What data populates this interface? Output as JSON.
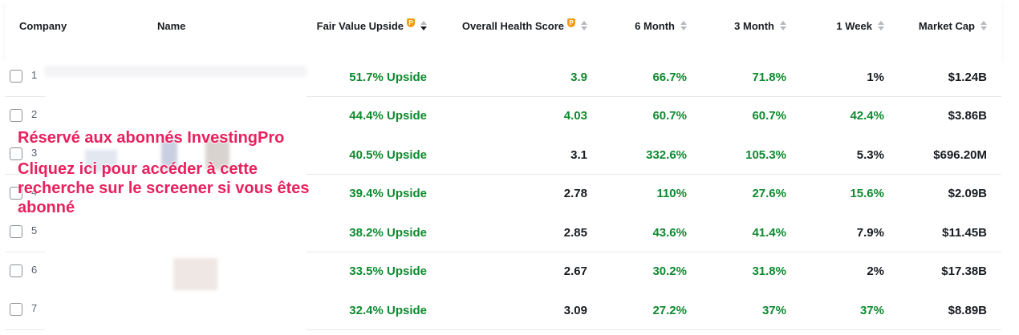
{
  "columns": {
    "company": "Company",
    "name": "Name",
    "fair_value_upside": "Fair Value Upside",
    "overall_health_score": "Overall Health Score",
    "six_month": "6 Month",
    "three_month": "3 Month",
    "one_week": "1 Week",
    "market_cap": "Market Cap"
  },
  "pro_badge": "P",
  "rows": [
    {
      "index": "1",
      "upside": "51.7% Upside",
      "health": "3.9",
      "health_color": "green",
      "m6": "66.7%",
      "m6_color": "green",
      "m3": "71.8%",
      "m3_color": "green",
      "w1": "1%",
      "w1_color": "dark",
      "mcap": "$1.24B"
    },
    {
      "index": "2",
      "upside": "44.4% Upside",
      "health": "4.03",
      "health_color": "green",
      "m6": "60.7%",
      "m6_color": "green",
      "m3": "60.7%",
      "m3_color": "green",
      "w1": "42.4%",
      "w1_color": "green",
      "mcap": "$3.86B"
    },
    {
      "index": "3",
      "upside": "40.5% Upside",
      "health": "3.1",
      "health_color": "dark",
      "m6": "332.6%",
      "m6_color": "green",
      "m3": "105.3%",
      "m3_color": "green",
      "w1": "5.3%",
      "w1_color": "dark",
      "mcap": "$696.20M"
    },
    {
      "index": "4",
      "upside": "39.4% Upside",
      "health": "2.78",
      "health_color": "dark",
      "m6": "110%",
      "m6_color": "green",
      "m3": "27.6%",
      "m3_color": "green",
      "w1": "15.6%",
      "w1_color": "green",
      "mcap": "$2.09B"
    },
    {
      "index": "5",
      "upside": "38.2% Upside",
      "health": "2.85",
      "health_color": "dark",
      "m6": "43.6%",
      "m6_color": "green",
      "m3": "41.4%",
      "m3_color": "green",
      "w1": "7.9%",
      "w1_color": "dark",
      "mcap": "$11.45B"
    },
    {
      "index": "6",
      "upside": "33.5% Upside",
      "health": "2.67",
      "health_color": "dark",
      "m6": "30.2%",
      "m6_color": "green",
      "m3": "31.8%",
      "m3_color": "green",
      "w1": "2%",
      "w1_color": "dark",
      "mcap": "$17.38B"
    },
    {
      "index": "7",
      "upside": "32.4% Upside",
      "health": "3.09",
      "health_color": "dark",
      "m6": "27.2%",
      "m6_color": "green",
      "m3": "37%",
      "m3_color": "green",
      "w1": "37%",
      "w1_color": "green",
      "mcap": "$8.89B"
    }
  ],
  "overlay": {
    "line1": "Réservé aux abonnés InvestingPro",
    "line2": "Cliquez ici pour accéder à cette recherche sur le screener si vous êtes abonné"
  },
  "colors": {
    "green": "#0e8a2f",
    "dark": "#181c21",
    "overlay": "#e8215f",
    "pro": "#f39a1b"
  }
}
